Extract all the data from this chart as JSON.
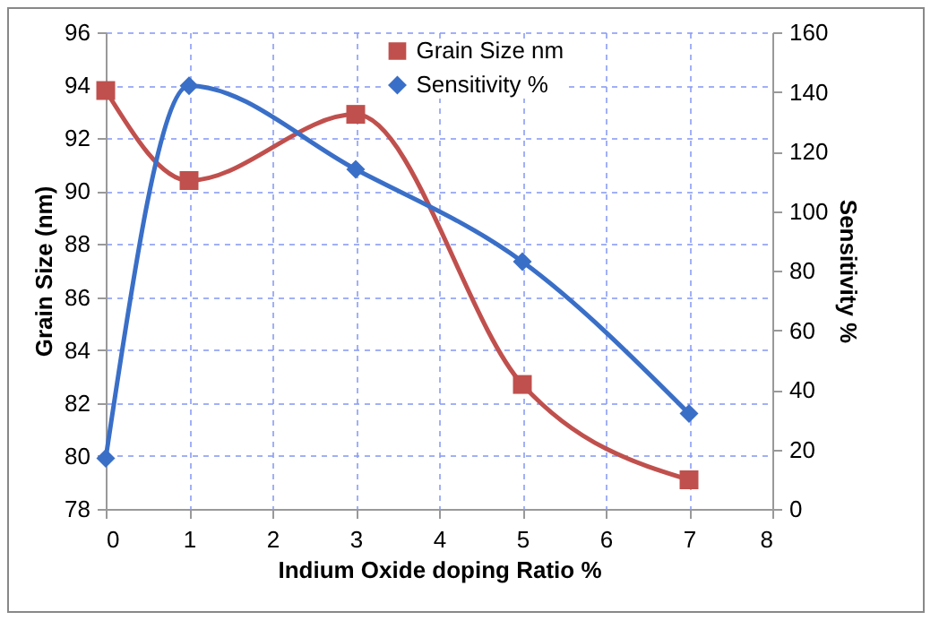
{
  "chart_data": {
    "type": "line",
    "xlabel": "Indium Oxide doping Ratio %",
    "ylabel": "Grain Size (nm)",
    "y2label": "Sensitivity %",
    "x": [
      0,
      1,
      3,
      5,
      7
    ],
    "series": [
      {
        "name": "Grain Size nm",
        "color": "#c0504d",
        "marker": "square",
        "values": [
          93.8,
          90.4,
          92.9,
          82.7,
          79.1
        ]
      },
      {
        "name": "Sensitivity %",
        "color": "#3a6fc8",
        "marker": "diamond",
        "axis": "y2",
        "values": [
          17,
          142,
          114,
          83,
          32
        ]
      }
    ],
    "xlim": [
      0,
      8
    ],
    "xticks": [
      0,
      1,
      2,
      3,
      4,
      5,
      6,
      7,
      8
    ],
    "ylim": [
      78,
      96
    ],
    "yticks": [
      78,
      80,
      82,
      84,
      86,
      88,
      90,
      92,
      94,
      96
    ],
    "y2lim": [
      0,
      160
    ],
    "y2ticks": [
      0,
      20,
      40,
      60,
      80,
      100,
      120,
      140,
      160
    ],
    "grid": true,
    "legend": "top",
    "line_style": "solid"
  }
}
